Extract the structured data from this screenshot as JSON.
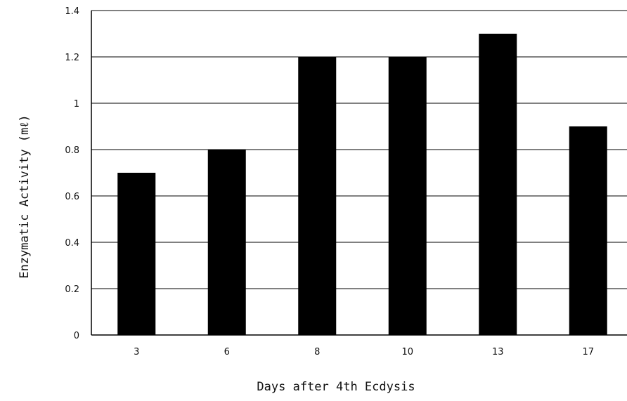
{
  "chart_data": {
    "type": "bar",
    "title": "",
    "xlabel": "Days after 4th Ecdysis",
    "ylabel": "Enzymatic Activity (mℓ)",
    "categories": [
      "3",
      "6",
      "8",
      "10",
      "13",
      "17"
    ],
    "values": [
      0.7,
      0.8,
      1.2,
      1.2,
      1.3,
      0.9
    ],
    "ylim": [
      0,
      1.4
    ],
    "yticks": [
      "0",
      "0.2",
      "0.4",
      "0.6",
      "0.8",
      "1",
      "1.2",
      "1.4"
    ],
    "grid": "horizontal",
    "legend": "none",
    "bar_color": "#000000"
  }
}
